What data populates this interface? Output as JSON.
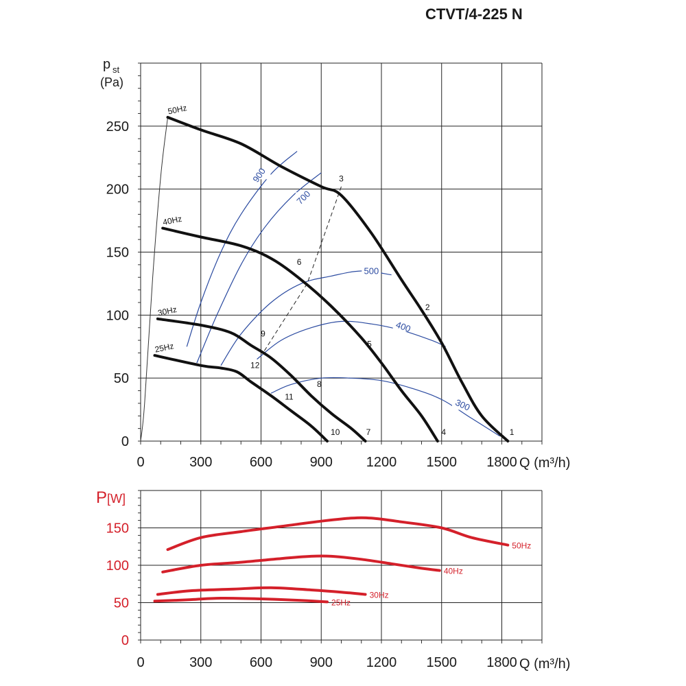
{
  "title": "CTVT/4-225 N",
  "chart_data": [
    {
      "type": "line",
      "xlabel": "Q (m³/h)",
      "ylabel_main": "p",
      "ylabel_sub": "st",
      "ylabel_unit": "(Pa)",
      "xlim": [
        0,
        2000
      ],
      "ylim": [
        0,
        300
      ],
      "x_ticks": [
        0,
        300,
        600,
        900,
        1200,
        1500,
        1800
      ],
      "y_ticks": [
        0,
        50,
        100,
        150,
        200,
        250
      ],
      "grid": true,
      "series": [
        {
          "name": "50Hz",
          "points": [
            [
              135,
              257
            ],
            [
              300,
              247
            ],
            [
              500,
              236
            ],
            [
              700,
              218
            ],
            [
              900,
              202
            ],
            [
              1000,
              195
            ],
            [
              1150,
              165
            ],
            [
              1300,
              128
            ],
            [
              1400,
              104
            ],
            [
              1500,
              78
            ],
            [
              1600,
              47
            ],
            [
              1700,
              20
            ],
            [
              1830,
              0
            ]
          ]
        },
        {
          "name": "40Hz",
          "points": [
            [
              110,
              169
            ],
            [
              300,
              162
            ],
            [
              500,
              155
            ],
            [
              650,
              145
            ],
            [
              800,
              128
            ],
            [
              950,
              107
            ],
            [
              1100,
              82
            ],
            [
              1200,
              62
            ],
            [
              1300,
              40
            ],
            [
              1400,
              20
            ],
            [
              1480,
              0
            ]
          ]
        },
        {
          "name": "30Hz",
          "points": [
            [
              85,
              97
            ],
            [
              300,
              92
            ],
            [
              450,
              86
            ],
            [
              550,
              76
            ],
            [
              650,
              66
            ],
            [
              750,
              52
            ],
            [
              850,
              36
            ],
            [
              950,
              22
            ],
            [
              1050,
              10
            ],
            [
              1120,
              0
            ]
          ]
        },
        {
          "name": "25Hz",
          "points": [
            [
              70,
              68
            ],
            [
              300,
              60
            ],
            [
              400,
              58
            ],
            [
              480,
              55
            ],
            [
              550,
              47
            ],
            [
              650,
              36
            ],
            [
              750,
              24
            ],
            [
              850,
              12
            ],
            [
              930,
              0
            ]
          ]
        }
      ],
      "iso_curves": [
        {
          "name": "900",
          "points": [
            [
              230,
              75
            ],
            [
              300,
              110
            ],
            [
              400,
              150
            ],
            [
              500,
              180
            ],
            [
              650,
              212
            ],
            [
              780,
              230
            ]
          ]
        },
        {
          "name": "700",
          "points": [
            [
              280,
              62
            ],
            [
              380,
              100
            ],
            [
              500,
              140
            ],
            [
              620,
              170
            ],
            [
              760,
              195
            ],
            [
              900,
              213
            ]
          ]
        },
        {
          "name": "500",
          "points": [
            [
              400,
              60
            ],
            [
              500,
              85
            ],
            [
              650,
              110
            ],
            [
              800,
              125
            ],
            [
              950,
              131
            ],
            [
              1100,
              135
            ],
            [
              1250,
              132
            ]
          ]
        },
        {
          "name": "400",
          "points": [
            [
              580,
              65
            ],
            [
              700,
              80
            ],
            [
              850,
              90
            ],
            [
              1000,
              95
            ],
            [
              1150,
              93
            ],
            [
              1300,
              88
            ],
            [
              1450,
              80
            ],
            [
              1520,
              75
            ]
          ]
        },
        {
          "name": "300",
          "points": [
            [
              650,
              38
            ],
            [
              750,
              45
            ],
            [
              900,
              50
            ],
            [
              1050,
              50
            ],
            [
              1200,
              48
            ],
            [
              1350,
              42
            ],
            [
              1500,
              33
            ],
            [
              1650,
              18
            ],
            [
              1790,
              4
            ]
          ]
        },
        {
          "name": "system",
          "points": [
            [
              0,
              0
            ],
            [
              20,
              30
            ],
            [
              60,
              130
            ],
            [
              100,
              210
            ],
            [
              135,
              257
            ]
          ]
        }
      ],
      "system_line": [
        [
          1000,
          202
        ],
        [
          830,
          125
        ],
        [
          610,
          70
        ]
      ],
      "point_labels": [
        {
          "text": "1",
          "x": 1850,
          "y": 5
        },
        {
          "text": "2",
          "x": 1430,
          "y": 104
        },
        {
          "text": "3",
          "x": 1000,
          "y": 206
        },
        {
          "text": "4",
          "x": 1510,
          "y": 5
        },
        {
          "text": "5",
          "x": 1140,
          "y": 75
        },
        {
          "text": "6",
          "x": 790,
          "y": 140
        },
        {
          "text": "7",
          "x": 1135,
          "y": 5
        },
        {
          "text": "8",
          "x": 890,
          "y": 43
        },
        {
          "text": "9",
          "x": 610,
          "y": 83
        },
        {
          "text": "10",
          "x": 970,
          "y": 5
        },
        {
          "text": "11",
          "x": 740,
          "y": 33
        },
        {
          "text": "12",
          "x": 570,
          "y": 58
        }
      ],
      "iso_label_positions": [
        {
          "text": "900",
          "x": 600,
          "y": 210,
          "angle": -55
        },
        {
          "text": "700",
          "x": 820,
          "y": 192,
          "angle": -45
        },
        {
          "text": "500",
          "x": 1150,
          "y": 133,
          "angle": 0
        },
        {
          "text": "400",
          "x": 1305,
          "y": 89,
          "angle": 20
        },
        {
          "text": "300",
          "x": 1600,
          "y": 27,
          "angle": 25
        }
      ]
    },
    {
      "type": "line",
      "xlabel": "Q (m³/h)",
      "ylabel_main": "P",
      "ylabel_unit": "[W]",
      "xlim": [
        0,
        2000
      ],
      "ylim": [
        0,
        200
      ],
      "x_ticks": [
        0,
        300,
        600,
        900,
        1200,
        1500,
        1800
      ],
      "y_ticks": [
        0,
        50,
        100,
        150
      ],
      "grid": true,
      "series": [
        {
          "name": "50Hz",
          "color": "#d4202a",
          "points": [
            [
              135,
              121
            ],
            [
              300,
              137
            ],
            [
              500,
              145
            ],
            [
              700,
              152
            ],
            [
              900,
              159
            ],
            [
              1050,
              163
            ],
            [
              1150,
              163
            ],
            [
              1300,
              158
            ],
            [
              1500,
              150
            ],
            [
              1650,
              137
            ],
            [
              1830,
              127
            ]
          ]
        },
        {
          "name": "40Hz",
          "color": "#d4202a",
          "points": [
            [
              110,
              91
            ],
            [
              300,
              100
            ],
            [
              500,
              104
            ],
            [
              700,
              109
            ],
            [
              850,
              112
            ],
            [
              950,
              112
            ],
            [
              1100,
              108
            ],
            [
              1250,
              102
            ],
            [
              1400,
              96
            ],
            [
              1490,
              93
            ]
          ]
        },
        {
          "name": "30Hz",
          "color": "#d4202a",
          "points": [
            [
              85,
              61
            ],
            [
              250,
              66
            ],
            [
              450,
              68
            ],
            [
              650,
              70
            ],
            [
              850,
              67
            ],
            [
              1000,
              64
            ],
            [
              1120,
              61
            ]
          ]
        },
        {
          "name": "25Hz",
          "color": "#d4202a",
          "points": [
            [
              70,
              52
            ],
            [
              250,
              54
            ],
            [
              400,
              56
            ],
            [
              600,
              55
            ],
            [
              800,
              53
            ],
            [
              930,
              51
            ]
          ]
        }
      ]
    }
  ]
}
